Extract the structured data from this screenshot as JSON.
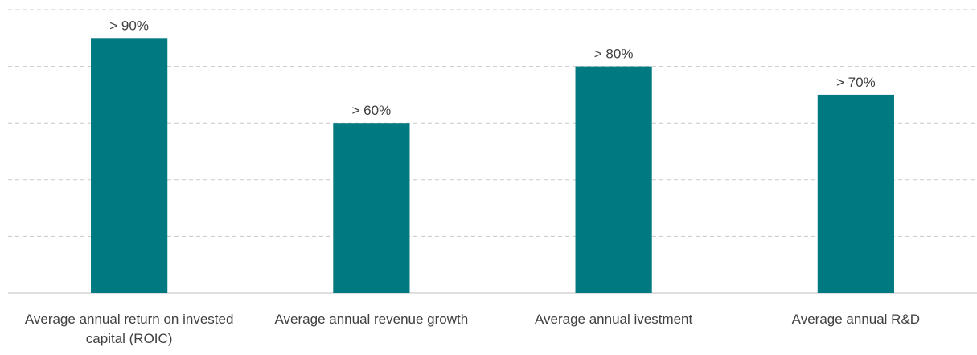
{
  "chart_data": {
    "type": "bar",
    "categories": [
      "Average annual return on invested capital (ROIC)",
      "Average annual revenue growth",
      "Average annual ivestment",
      "Average annual R&D"
    ],
    "values": [
      90,
      60,
      80,
      70
    ],
    "value_labels": [
      "> 90%",
      "> 60%",
      "> 80%",
      "> 70%"
    ],
    "color": "#007a80",
    "ylim": [
      0,
      100
    ],
    "yticks": [
      0,
      20,
      40,
      60,
      80,
      100
    ],
    "grid": true
  }
}
